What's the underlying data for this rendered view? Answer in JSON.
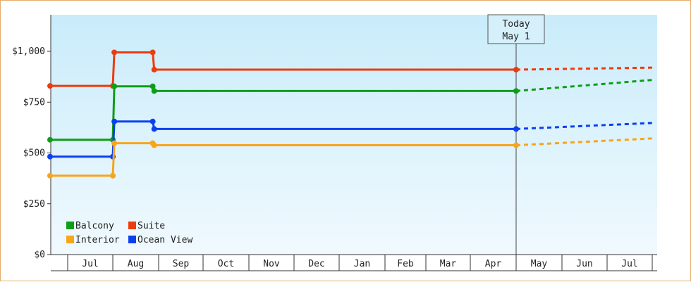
{
  "chart_data": {
    "type": "line",
    "step": true,
    "x_months": [
      "Jul",
      "Aug",
      "Sep",
      "Oct",
      "Nov",
      "Dec",
      "Jan",
      "Feb",
      "Mar",
      "Apr",
      "May",
      "Jun",
      "Jul"
    ],
    "y_ticks": [
      {
        "value": 0,
        "label": "$0"
      },
      {
        "value": 250,
        "label": "$250"
      },
      {
        "value": 500,
        "label": "$500"
      },
      {
        "value": 750,
        "label": "$750"
      },
      {
        "value": 1000,
        "label": "$1,000"
      }
    ],
    "ylim": [
      0,
      1180
    ],
    "grid": false,
    "legend_position": "bottom-left",
    "today_marker": {
      "line1": "Today",
      "line2": "May 1"
    },
    "series": [
      {
        "name": "Suite",
        "color": "#ee3a0c",
        "points": [
          [
            "Jun 30",
            830
          ],
          [
            "Aug 1",
            830
          ],
          [
            "Aug 2",
            995
          ],
          [
            "Aug 28",
            995
          ],
          [
            "Aug 29",
            910
          ],
          [
            "May 1",
            910
          ]
        ],
        "projection": [
          [
            "May 1",
            910
          ],
          [
            "Jul 31",
            920
          ]
        ]
      },
      {
        "name": "Balcony",
        "color": "#0f9d17",
        "points": [
          [
            "Jun 30",
            565
          ],
          [
            "Aug 1",
            565
          ],
          [
            "Aug 2",
            828
          ],
          [
            "Aug 28",
            828
          ],
          [
            "Aug 29",
            805
          ],
          [
            "May 1",
            805
          ]
        ],
        "projection": [
          [
            "May 1",
            805
          ],
          [
            "Jul 31",
            860
          ]
        ]
      },
      {
        "name": "Ocean View",
        "color": "#0b3ff0",
        "points": [
          [
            "Jun 30",
            482
          ],
          [
            "Aug 1",
            482
          ],
          [
            "Aug 2",
            655
          ],
          [
            "Aug 28",
            655
          ],
          [
            "Aug 29",
            618
          ],
          [
            "May 1",
            618
          ]
        ],
        "projection": [
          [
            "May 1",
            618
          ],
          [
            "Jul 31",
            648
          ]
        ]
      },
      {
        "name": "Interior",
        "color": "#f7a51a",
        "points": [
          [
            "Jun 30",
            388
          ],
          [
            "Aug 1",
            388
          ],
          [
            "Aug 2",
            548
          ],
          [
            "Aug 28",
            548
          ],
          [
            "Aug 29",
            538
          ],
          [
            "May 1",
            538
          ]
        ],
        "projection": [
          [
            "May 1",
            538
          ],
          [
            "Jul 31",
            572
          ]
        ]
      }
    ],
    "legend": [
      {
        "name": "Balcony",
        "color": "#0f9d17"
      },
      {
        "name": "Suite",
        "color": "#ee3a0c"
      },
      {
        "name": "Interior",
        "color": "#f7a51a"
      },
      {
        "name": "Ocean View",
        "color": "#0b3ff0"
      }
    ]
  }
}
